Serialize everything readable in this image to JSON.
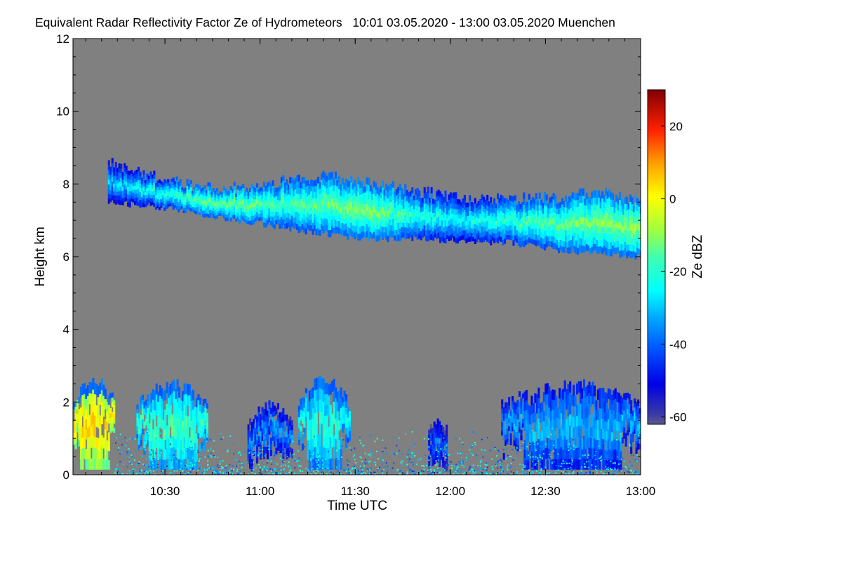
{
  "chart_data": {
    "type": "heatmap",
    "title": "Equivalent Radar Reflectivity Factor Ze of Hydrometeors   10:01 03.05.2020 - 13:00 03.05.2020 Muenchen",
    "xlabel": "Time UTC",
    "ylabel": "Height km",
    "x_range_minutes_utc": [
      601,
      780
    ],
    "x_ticks": [
      {
        "label": "10:30",
        "minutes": 630
      },
      {
        "label": "11:00",
        "minutes": 660
      },
      {
        "label": "11:30",
        "minutes": 690
      },
      {
        "label": "12:00",
        "minutes": 720
      },
      {
        "label": "12:30",
        "minutes": 750
      },
      {
        "label": "13:00",
        "minutes": 780
      }
    ],
    "ylim": [
      0,
      12
    ],
    "y_ticks": [
      {
        "label": "0",
        "value": 0
      },
      {
        "label": "2",
        "value": 2
      },
      {
        "label": "4",
        "value": 4
      },
      {
        "label": "6",
        "value": 6
      },
      {
        "label": "8",
        "value": 8
      },
      {
        "label": "10",
        "value": 10
      },
      {
        "label": "12",
        "value": 12
      }
    ],
    "colorbar": {
      "label": "Ze dBZ",
      "range": [
        -62,
        30
      ],
      "ticks": [
        {
          "label": "20",
          "value": 20
        },
        {
          "label": "0",
          "value": 0
        },
        {
          "label": "-20",
          "value": -20
        },
        {
          "label": "-40",
          "value": -40
        },
        {
          "label": "-60",
          "value": -60
        }
      ]
    },
    "background_color": "#808080",
    "upper_cloud_band": {
      "start_min": 612,
      "end_min": 780,
      "top_km": [
        8.6,
        8.2,
        7.9,
        7.9,
        8.1,
        8.2,
        8.0,
        7.8,
        7.6,
        7.6,
        7.6,
        7.8,
        7.5
      ],
      "bottom_km": [
        7.5,
        7.4,
        7.2,
        7.0,
        6.8,
        6.6,
        6.5,
        6.5,
        6.4,
        6.4,
        6.2,
        6.1,
        6.0
      ],
      "core_dbz": [
        -28,
        -22,
        -14,
        -12,
        -16,
        -12,
        -10,
        -20,
        -24,
        -18,
        -14,
        -10,
        -8
      ]
    },
    "lower_clouds": [
      {
        "start_min": 601,
        "end_min": 614,
        "top_km": 2.6,
        "peak_dbz": 5
      },
      {
        "start_min": 621,
        "end_min": 643,
        "top_km": 2.5,
        "peak_dbz": -16
      },
      {
        "start_min": 656,
        "end_min": 670,
        "top_km": 1.9,
        "peak_dbz": -34
      },
      {
        "start_min": 672,
        "end_min": 688,
        "top_km": 2.6,
        "peak_dbz": -20
      },
      {
        "start_min": 713,
        "end_min": 719,
        "top_km": 1.5,
        "peak_dbz": -38
      },
      {
        "start_min": 736,
        "end_min": 780,
        "top_km": 2.5,
        "peak_dbz": -30
      }
    ],
    "surface_clutter_dbz": -30
  }
}
